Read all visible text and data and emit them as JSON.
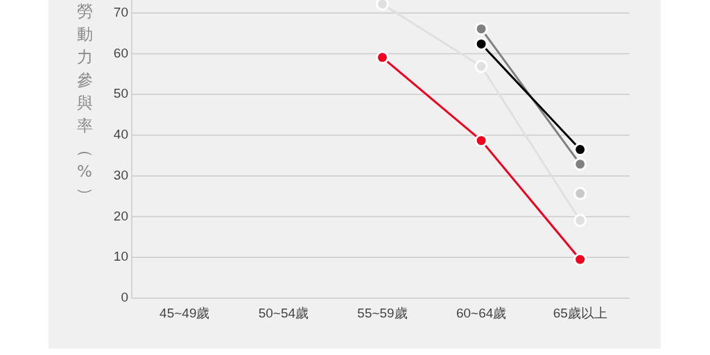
{
  "chart_data": {
    "type": "line",
    "ylabel": "勞動力參與率（%）",
    "categories": [
      "45~49歲",
      "50~54歲",
      "55~59歲",
      "60~64歲",
      "65歲以上"
    ],
    "series": [
      {
        "color": "#e0e0e0",
        "values": [
          null,
          null,
          72.2,
          56.9,
          19.1
        ]
      },
      {
        "color": "#c8c8c8",
        "values": [
          null,
          null,
          null,
          null,
          25.7
        ]
      },
      {
        "color": "#808080",
        "values": [
          null,
          null,
          null,
          66.1,
          32.9
        ]
      },
      {
        "color": "#000000",
        "values": [
          null,
          null,
          null,
          62.4,
          36.5
        ]
      },
      {
        "color": "#f0001e",
        "values": [
          null,
          null,
          59.1,
          38.7,
          9.5
        ]
      }
    ],
    "ylim": [
      0,
      73.2
    ],
    "yticks": [
      0,
      10,
      20,
      30,
      40,
      50,
      60,
      70
    ],
    "grid": "y",
    "marker": "circle"
  }
}
